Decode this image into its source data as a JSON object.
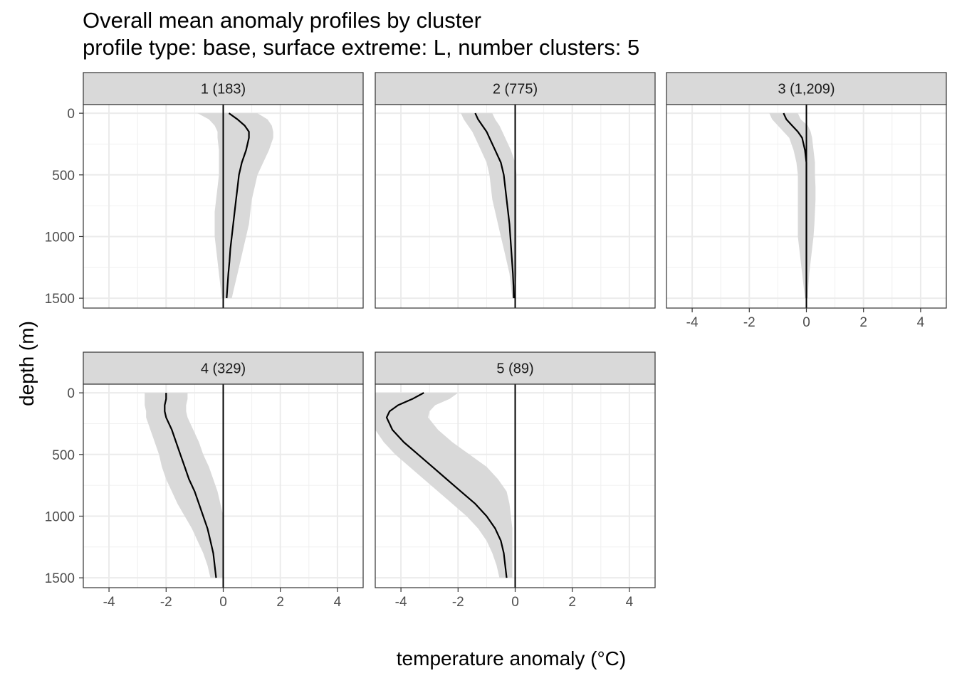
{
  "title": "Overall mean anomaly profiles by cluster",
  "subtitle": "profile type: base, surface extreme: L, number clusters: 5",
  "chart_data": {
    "type": "line",
    "xlabel": "temperature anomaly (°C)",
    "ylabel": "depth (m)",
    "xlim": [
      -4.9,
      4.9
    ],
    "ylim": [
      1580,
      -70
    ],
    "y_reversed": true,
    "x_ticks": [
      -4,
      -2,
      0,
      2,
      4
    ],
    "x_tick_labels": [
      "-4",
      "-2",
      "0",
      "2",
      "4"
    ],
    "y_ticks": [
      0,
      500,
      1000,
      1500
    ],
    "y_tick_labels": [
      "0",
      "500",
      "1000",
      "1500"
    ],
    "grid": true,
    "reference_line_x": 0,
    "band_color": "#d9d9d9",
    "line_color": "#000000",
    "strip_color": "#d9d9d9",
    "panels": [
      {
        "label": "1 (183)",
        "depth": [
          0,
          50,
          100,
          150,
          200,
          300,
          400,
          500,
          600,
          700,
          800,
          900,
          1000,
          1100,
          1200,
          1300,
          1400,
          1500
        ],
        "mean": [
          0.2,
          0.5,
          0.75,
          0.9,
          0.9,
          0.8,
          0.65,
          0.55,
          0.5,
          0.45,
          0.4,
          0.35,
          0.3,
          0.25,
          0.22,
          0.18,
          0.15,
          0.12
        ],
        "lower": [
          -0.9,
          -0.5,
          -0.3,
          -0.2,
          -0.2,
          -0.15,
          -0.15,
          -0.15,
          -0.2,
          -0.25,
          -0.3,
          -0.3,
          -0.3,
          -0.25,
          -0.2,
          -0.15,
          -0.1,
          -0.05
        ],
        "upper": [
          1.2,
          1.55,
          1.7,
          1.75,
          1.75,
          1.6,
          1.4,
          1.2,
          1.1,
          1.0,
          0.95,
          0.9,
          0.8,
          0.7,
          0.6,
          0.5,
          0.4,
          0.3
        ]
      },
      {
        "label": "2 (775)",
        "depth": [
          0,
          50,
          100,
          150,
          200,
          300,
          400,
          500,
          600,
          700,
          800,
          900,
          1000,
          1100,
          1200,
          1300,
          1400,
          1500
        ],
        "mean": [
          -1.4,
          -1.3,
          -1.15,
          -1.0,
          -0.9,
          -0.7,
          -0.5,
          -0.4,
          -0.35,
          -0.3,
          -0.25,
          -0.2,
          -0.17,
          -0.14,
          -0.11,
          -0.08,
          -0.06,
          -0.05
        ],
        "lower": [
          -1.9,
          -1.8,
          -1.65,
          -1.5,
          -1.4,
          -1.2,
          -1.0,
          -0.9,
          -0.85,
          -0.8,
          -0.7,
          -0.6,
          -0.5,
          -0.4,
          -0.3,
          -0.2,
          -0.15,
          -0.1
        ],
        "upper": [
          -0.8,
          -0.7,
          -0.55,
          -0.45,
          -0.35,
          -0.15,
          0.0,
          0.05,
          0.05,
          0.05,
          0.05,
          0.05,
          0.05,
          0.05,
          0.05,
          0.05,
          0.02,
          0.0
        ]
      },
      {
        "label": "3 (1,209)",
        "depth": [
          0,
          50,
          100,
          150,
          200,
          300,
          400,
          500,
          600,
          700,
          800,
          900,
          1000,
          1100,
          1200,
          1300,
          1400,
          1500
        ],
        "mean": [
          -0.8,
          -0.7,
          -0.5,
          -0.3,
          -0.15,
          -0.05,
          0.0,
          0.0,
          0.0,
          0.0,
          0.0,
          0.0,
          0.0,
          0.0,
          0.0,
          0.0,
          0.0,
          0.0
        ],
        "lower": [
          -1.3,
          -1.2,
          -1.0,
          -0.8,
          -0.6,
          -0.45,
          -0.35,
          -0.3,
          -0.3,
          -0.3,
          -0.3,
          -0.3,
          -0.3,
          -0.25,
          -0.2,
          -0.15,
          -0.1,
          -0.05
        ],
        "upper": [
          -0.3,
          -0.2,
          0.05,
          0.15,
          0.2,
          0.25,
          0.3,
          0.3,
          0.32,
          0.32,
          0.3,
          0.28,
          0.25,
          0.2,
          0.15,
          0.1,
          0.07,
          0.05
        ]
      },
      {
        "label": "4 (329)",
        "depth": [
          0,
          50,
          100,
          150,
          200,
          300,
          400,
          500,
          600,
          700,
          800,
          900,
          1000,
          1100,
          1200,
          1300,
          1400,
          1500
        ],
        "mean": [
          -2.0,
          -2.0,
          -2.05,
          -2.05,
          -2.0,
          -1.8,
          -1.65,
          -1.5,
          -1.35,
          -1.2,
          -1.0,
          -0.85,
          -0.7,
          -0.55,
          -0.45,
          -0.35,
          -0.3,
          -0.25
        ],
        "lower": [
          -2.75,
          -2.75,
          -2.75,
          -2.7,
          -2.7,
          -2.55,
          -2.4,
          -2.25,
          -2.15,
          -2.0,
          -1.8,
          -1.6,
          -1.35,
          -1.1,
          -0.9,
          -0.7,
          -0.55,
          -0.45
        ],
        "upper": [
          -1.25,
          -1.25,
          -1.3,
          -1.3,
          -1.25,
          -1.05,
          -0.85,
          -0.7,
          -0.5,
          -0.35,
          -0.2,
          -0.1,
          0.0,
          0.0,
          0.0,
          0.0,
          0.0,
          0.0
        ]
      },
      {
        "label": "5 (89)",
        "depth": [
          0,
          50,
          100,
          150,
          200,
          300,
          400,
          500,
          600,
          700,
          800,
          900,
          1000,
          1100,
          1200,
          1300,
          1400,
          1500
        ],
        "mean": [
          -3.2,
          -3.6,
          -4.1,
          -4.4,
          -4.5,
          -4.3,
          -3.9,
          -3.4,
          -2.9,
          -2.4,
          -1.9,
          -1.4,
          -1.0,
          -0.7,
          -0.5,
          -0.4,
          -0.35,
          -0.3
        ],
        "lower": [
          -4.9,
          -4.9,
          -4.9,
          -4.9,
          -4.9,
          -4.9,
          -4.6,
          -4.2,
          -3.7,
          -3.2,
          -2.7,
          -2.2,
          -1.7,
          -1.3,
          -1.0,
          -0.8,
          -0.65,
          -0.55
        ],
        "upper": [
          -2.0,
          -2.3,
          -2.8,
          -3.0,
          -3.05,
          -2.7,
          -2.2,
          -1.6,
          -1.0,
          -0.6,
          -0.3,
          -0.2,
          -0.15,
          -0.1,
          -0.1,
          -0.1,
          -0.1,
          -0.1
        ]
      }
    ]
  }
}
